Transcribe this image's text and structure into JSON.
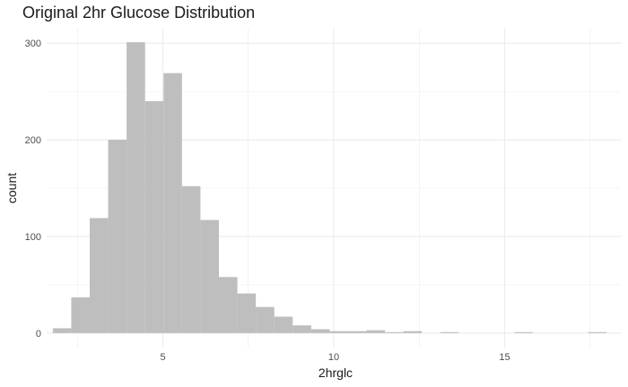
{
  "chart_data": {
    "type": "bar",
    "title": "Original 2hr Glucose Distribution",
    "xlabel": "2hrglc",
    "ylabel": "count",
    "xlim": [
      1.6,
      18.4
    ],
    "ylim": [
      -15,
      315
    ],
    "x_ticks": [
      5,
      10,
      15
    ],
    "y_ticks": [
      0,
      100,
      200,
      300
    ],
    "grid": true,
    "bin_width": 0.54,
    "bin_centers": [
      2.05,
      2.59,
      3.13,
      3.67,
      4.21,
      4.75,
      5.29,
      5.83,
      6.37,
      6.91,
      7.45,
      7.99,
      8.53,
      9.07,
      9.61,
      10.15,
      10.69,
      11.23,
      11.77,
      12.31,
      12.85,
      13.39,
      13.93,
      14.47,
      15.01,
      15.55,
      16.09,
      16.63,
      17.17,
      17.71
    ],
    "counts": [
      5,
      37,
      119,
      200,
      301,
      240,
      269,
      152,
      117,
      58,
      41,
      27,
      17,
      8,
      4,
      2,
      2,
      3,
      1,
      2,
      0,
      1,
      0,
      0,
      0,
      1,
      0,
      0,
      0,
      1
    ],
    "bar_color": "#bebebe",
    "grid_color": "#ebebeb"
  }
}
